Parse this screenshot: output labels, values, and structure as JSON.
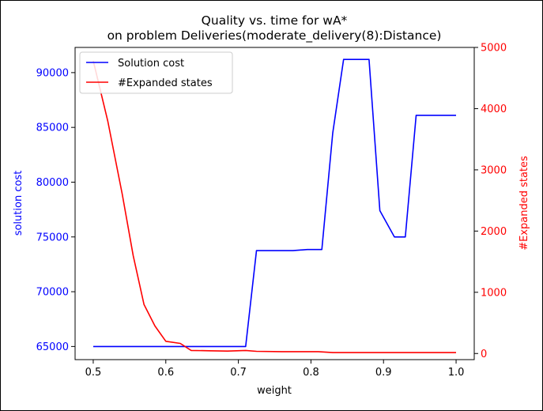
{
  "chart_data": {
    "type": "line",
    "title_line1": "Quality vs. time for wA*",
    "title_line2": "on problem Deliveries(moderate_delivery(8):Distance)",
    "xlabel": "weight",
    "ylabel_left": "solution cost",
    "ylabel_right": "#Expanded states",
    "xlim": [
      0.475,
      1.025
    ],
    "ylim_left": [
      63800,
      92300
    ],
    "ylim_right": [
      -100,
      5000
    ],
    "x_ticks": [
      "0.5",
      "0.6",
      "0.7",
      "0.8",
      "0.9",
      "1.0"
    ],
    "y_left_ticks": [
      "65000",
      "70000",
      "75000",
      "80000",
      "85000",
      "90000"
    ],
    "y_right_ticks": [
      "0",
      "1000",
      "2000",
      "3000",
      "4000",
      "5000"
    ],
    "legend_position": "upper left",
    "series": [
      {
        "name": "Solution cost",
        "axis": "left",
        "color": "#0000ff",
        "x": [
          0.5,
          0.52,
          0.54,
          0.56,
          0.58,
          0.6,
          0.62,
          0.64,
          0.66,
          0.68,
          0.71,
          0.725,
          0.745,
          0.775,
          0.795,
          0.815,
          0.83,
          0.845,
          0.865,
          0.88,
          0.895,
          0.915,
          0.93,
          0.945,
          0.96,
          1.0
        ],
        "values": [
          65000,
          65000,
          65000,
          65000,
          65000,
          65000,
          65000,
          65000,
          65000,
          65000,
          65000,
          73750,
          73750,
          73750,
          73850,
          73850,
          84500,
          91200,
          91200,
          91200,
          77400,
          75000,
          75000,
          86100,
          86100,
          86100
        ]
      },
      {
        "name": "#Expanded states",
        "axis": "right",
        "color": "#ff0000",
        "x": [
          0.5,
          0.52,
          0.54,
          0.555,
          0.57,
          0.585,
          0.6,
          0.62,
          0.635,
          0.66,
          0.685,
          0.71,
          0.725,
          0.76,
          0.81,
          0.83,
          0.86,
          0.9,
          0.95,
          1.0
        ],
        "values": [
          4780,
          3800,
          2600,
          1600,
          800,
          450,
          200,
          165,
          50,
          45,
          40,
          50,
          35,
          30,
          30,
          15,
          15,
          15,
          15,
          15
        ]
      }
    ]
  },
  "colors": {
    "left_axis": "#0000ff",
    "right_axis": "#ff0000"
  }
}
